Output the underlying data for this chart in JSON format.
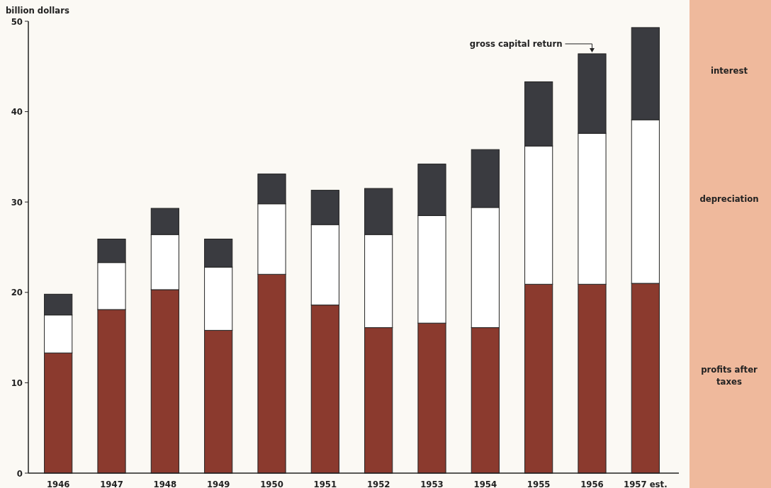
{
  "chart_data": {
    "type": "bar",
    "stacked": true,
    "ylabel": "billion dollars",
    "categories": [
      "1946",
      "1947",
      "1948",
      "1949",
      "1950",
      "1951",
      "1952",
      "1953",
      "1954",
      "1955",
      "1956",
      "1957 est."
    ],
    "series": [
      {
        "name": "profits after taxes",
        "color": "#8b3a2e",
        "values": [
          13.3,
          18.1,
          20.3,
          15.8,
          22.0,
          18.6,
          16.1,
          16.6,
          16.1,
          20.9,
          20.9,
          21.0
        ]
      },
      {
        "name": "depreciation",
        "color": "#ffffff",
        "values": [
          4.2,
          5.2,
          6.1,
          7.0,
          7.8,
          8.9,
          10.3,
          11.9,
          13.3,
          15.3,
          16.7,
          18.1
        ]
      },
      {
        "name": "interest",
        "color": "#3a3b40",
        "values": [
          2.3,
          2.6,
          2.9,
          3.1,
          3.3,
          3.8,
          5.1,
          5.7,
          6.4,
          7.1,
          8.8,
          10.2
        ]
      }
    ],
    "ylim": [
      0,
      50
    ],
    "yticks": [
      0,
      10,
      20,
      30,
      40,
      50
    ],
    "grid": false,
    "legend": "right",
    "annotations": [
      {
        "text": "gross capital return",
        "x": "1956",
        "y": 46.4
      }
    ]
  }
}
